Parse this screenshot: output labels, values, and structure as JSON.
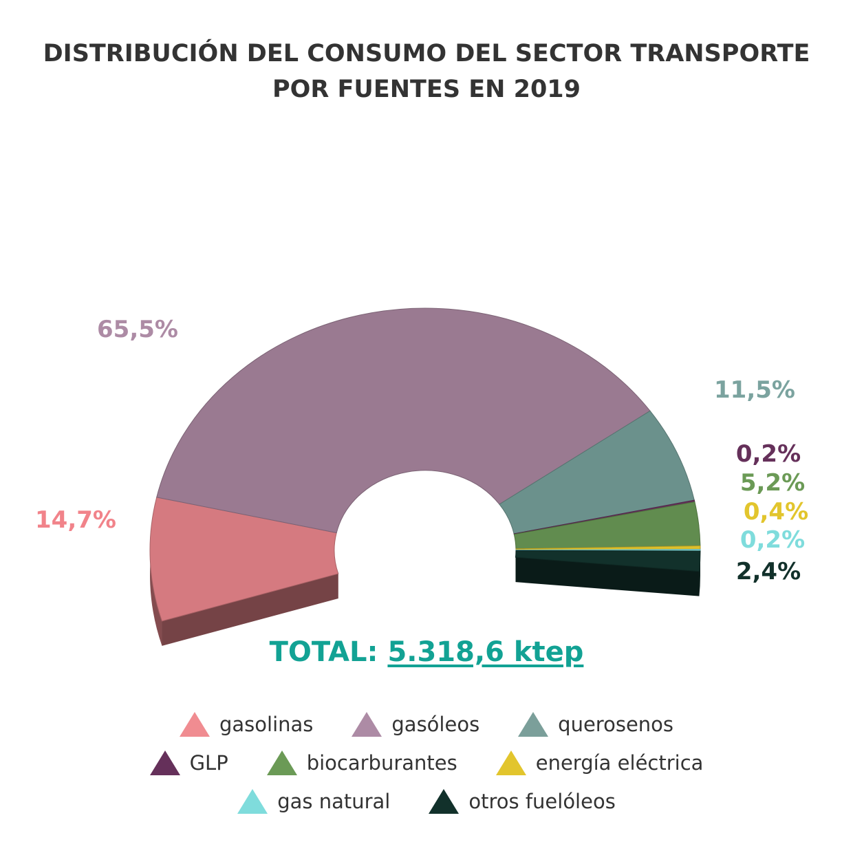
{
  "title": {
    "line1": "DISTRIBUCIÓN DEL CONSUMO DEL SECTOR TRANSPORTE",
    "line2": "POR FUENTES EN 2019"
  },
  "total": {
    "label": "TOTAL:",
    "value": "5.318,6 ktep"
  },
  "chart_data": {
    "type": "pie",
    "variant": "3d-half-donut",
    "title": "DISTRIBUCIÓN DEL CONSUMO DEL SECTOR TRANSPORTE POR FUENTES EN 2019",
    "unit": "%",
    "categories": [
      "gasolinas",
      "gasóleos",
      "querosenos",
      "GLP",
      "biocarburantes",
      "energía eléctrica",
      "gas natural",
      "otros fuelóleos"
    ],
    "values": [
      14.7,
      65.5,
      11.5,
      0.2,
      5.2,
      0.4,
      0.2,
      2.4
    ],
    "labels": [
      "14,7%",
      "65,5%",
      "11,5%",
      "0,2%",
      "5,2%",
      "0,4%",
      "0,2%",
      "2,4%"
    ],
    "colors": [
      "#d57a80",
      "#9a7a91",
      "#6b918c",
      "#65305a",
      "#618c4f",
      "#ddc12c",
      "#7dd6d6",
      "#12312b"
    ],
    "label_colors": [
      "#f1838a",
      "#ad8ba5",
      "#7ba39f",
      "#65305a",
      "#6b9a56",
      "#e2c52d",
      "#7fdcdc",
      "#12312b"
    ],
    "legend_colors": [
      "#f08c91",
      "#ad8ba5",
      "#7b9f9a",
      "#65305a",
      "#6b9a56",
      "#e2c52d",
      "#7fdcdc",
      "#12312b"
    ],
    "legend_placement": "bottom",
    "total": "5.318,6 ktep"
  }
}
